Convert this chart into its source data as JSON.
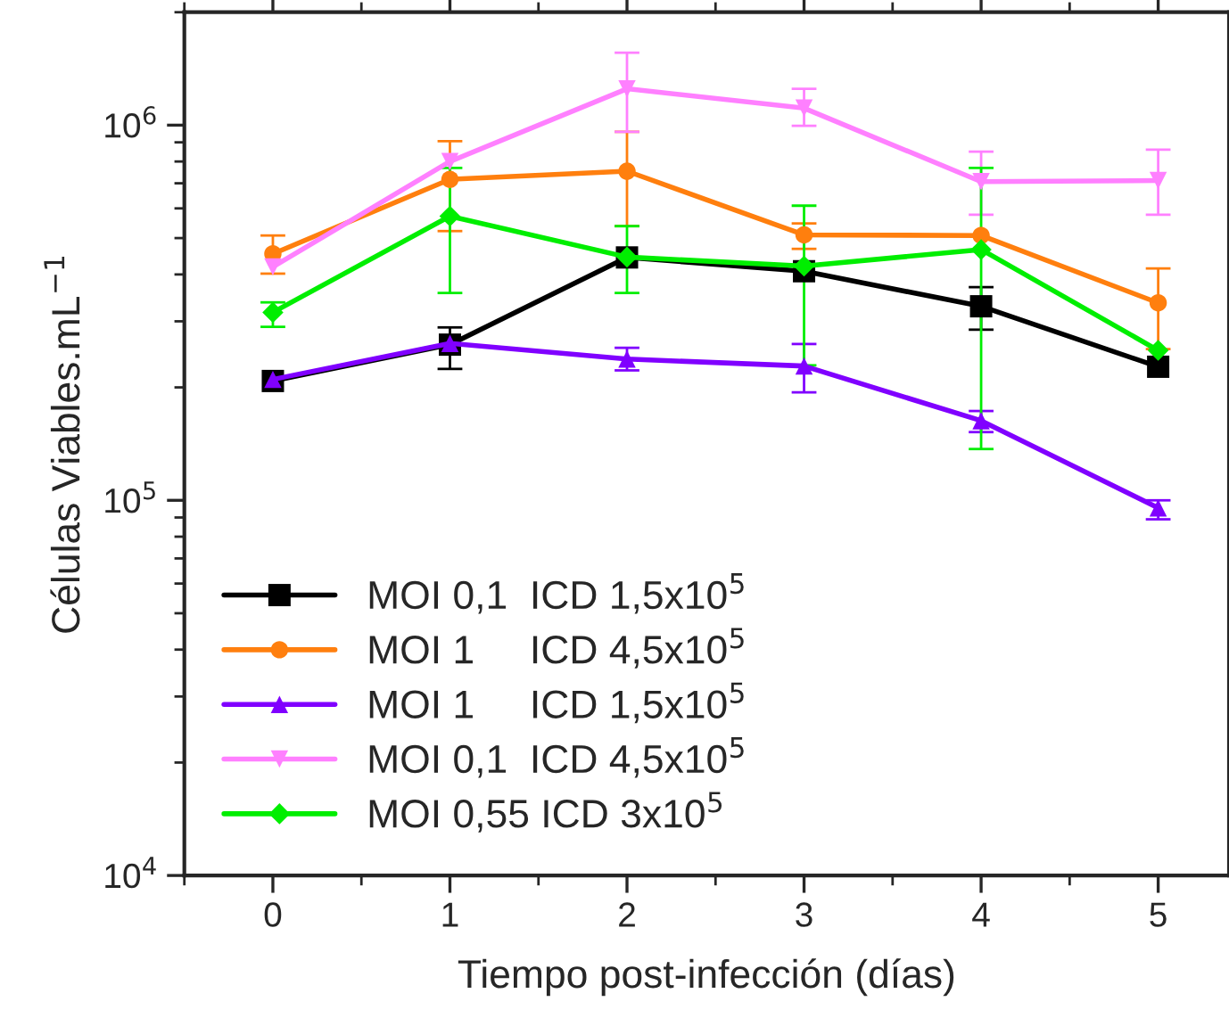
{
  "chart_data": {
    "type": "line",
    "xlabel": "Tiempo post-infección (días)",
    "ylabel": "Células Viables.mL$^{−1}$",
    "x": [
      0,
      1,
      2,
      3,
      4,
      5
    ],
    "xlim": [
      -0.5,
      5.4
    ],
    "xticks": [
      0,
      1,
      2,
      3,
      4,
      5
    ],
    "log": true,
    "ylim": [
      10000,
      2000000
    ],
    "yticks": [
      {
        "value": 10000,
        "label": "10$^{4}$"
      },
      {
        "value": 100000,
        "label": "10$^{5}$"
      },
      {
        "value": 1000000,
        "label": "10$^{6}$"
      }
    ],
    "grid": false,
    "legend": "bottom left",
    "line_style": "solid",
    "series": [
      {
        "name": "MOI 0,1  ICD 1,5x10$^{5}$",
        "color": "#000000",
        "marker": "square",
        "values": [
          208000,
          260000,
          444000,
          408000,
          329000,
          227000
        ],
        "errors": [
          null,
          [
            224000,
            289000
          ],
          null,
          null,
          [
            285000,
            370000
          ],
          null
        ]
      },
      {
        "name": "MOI 1     ICD 4,5x10$^{5}$",
        "color": "#ff7f0e",
        "marker": "circle",
        "values": [
          454000,
          717000,
          754000,
          510000,
          508000,
          336000
        ],
        "errors": [
          [
            402000,
            508000
          ],
          [
            522000,
            906000
          ],
          [
            538000,
            960000
          ],
          [
            468000,
            547000
          ],
          null,
          [
            253000,
            415000
          ]
        ]
      },
      {
        "name": "MOI 1     ICD 1,5x10$^{5}$",
        "color": "#8000ff",
        "marker": "triangle",
        "values": [
          210000,
          262000,
          238000,
          228000,
          163000,
          95500
        ],
        "errors": [
          null,
          null,
          [
            222000,
            255000
          ],
          [
            194000,
            261000
          ],
          [
            152000,
            173000
          ],
          [
            89000,
            100000
          ]
        ]
      },
      {
        "name": "MOI 0,1  ICD 4,5x10$^{5}$",
        "color": "#ff80ff",
        "marker": "triangle_down",
        "values": [
          419000,
          800000,
          1250000,
          1110000,
          707000,
          712000
        ],
        "errors": [
          null,
          null,
          [
            960000,
            1560000
          ],
          [
            996000,
            1250000
          ],
          [
            577000,
            850000
          ],
          [
            577000,
            860000
          ]
        ]
      },
      {
        "name": "MOI 0,55 ICD 3x10$^{5}$",
        "color": "#00ee00",
        "marker": "diamond",
        "values": [
          317000,
          572000,
          445000,
          421000,
          466000,
          251000
        ],
        "errors": [
          [
            290000,
            337000
          ],
          [
            357000,
            769000
          ],
          [
            357000,
            538000
          ],
          [
            229000,
            610000
          ],
          [
            137000,
            769000
          ],
          null
        ]
      }
    ]
  }
}
